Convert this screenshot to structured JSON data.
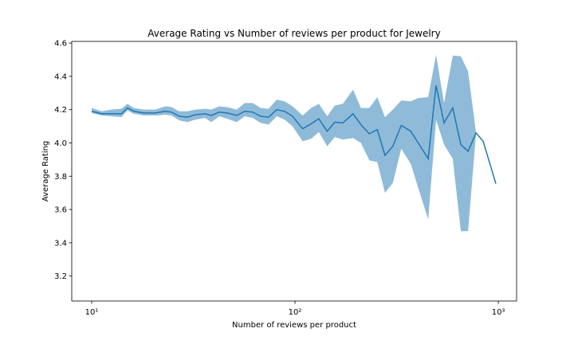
{
  "chart_data": {
    "type": "line",
    "title": "Average Rating vs Number of reviews per product for Jewelry",
    "xlabel": "Number of reviews per product",
    "ylabel": "Average Rating",
    "xscale": "log",
    "xlim": [
      7.98,
      1230
    ],
    "ylim": [
      3.05,
      4.61
    ],
    "xticks": [
      {
        "value": 10,
        "label": "10¹"
      },
      {
        "value": 100,
        "label": "10²"
      },
      {
        "value": 1000,
        "label": "10³"
      }
    ],
    "yticks": [
      3.2,
      3.4,
      3.6,
      3.8,
      {
        "value": 4,
        "label": "4.0"
      },
      4.2,
      4.4,
      4.6
    ],
    "x": [
      10,
      11.2,
      12.5,
      14.0,
      15.0,
      16.1,
      18.0,
      20.6,
      23.0,
      24.7,
      27.0,
      29.6,
      32.4,
      36.1,
      38.8,
      42.4,
      46.4,
      51.7,
      56.6,
      62.0,
      67.8,
      74.2,
      81.3,
      88.9,
      97.3,
      109,
      120,
      131,
      144,
      157,
      172,
      193,
      211,
      232,
      254,
      277,
      303,
      333,
      371,
      406,
      452,
      494,
      541,
      597,
      654,
      710,
      777,
      842,
      973
    ],
    "series": [
      {
        "color": "#1f77b4",
        "band_color": "#1f77b4",
        "band_opacity": 0.5,
        "values": [
          4.19,
          4.175,
          4.175,
          4.175,
          4.21,
          4.19,
          4.18,
          4.18,
          4.19,
          4.185,
          4.16,
          4.155,
          4.17,
          4.175,
          4.165,
          4.185,
          4.18,
          4.165,
          4.19,
          4.185,
          4.16,
          4.155,
          4.2,
          4.19,
          4.16,
          4.085,
          4.115,
          4.145,
          4.07,
          4.125,
          4.12,
          4.175,
          4.11,
          4.055,
          4.08,
          3.925,
          3.98,
          4.105,
          4.07,
          3.995,
          3.905,
          4.345,
          4.12,
          4.21,
          3.99,
          3.95,
          4.06,
          4.01,
          3.755
        ],
        "lower": [
          4.18,
          4.165,
          4.16,
          4.155,
          4.195,
          4.175,
          4.165,
          4.165,
          4.17,
          4.165,
          4.135,
          4.125,
          4.14,
          4.15,
          4.125,
          4.16,
          4.145,
          4.125,
          4.16,
          4.15,
          4.12,
          4.11,
          4.16,
          4.14,
          4.1,
          4.01,
          4.025,
          4.065,
          3.98,
          4.035,
          4.02,
          4.03,
          4.0,
          3.895,
          3.885,
          3.7,
          3.76,
          3.965,
          3.875,
          3.72,
          3.54,
          4.14,
          3.99,
          3.905,
          3.47,
          3.47,
          4.06,
          null,
          null
        ],
        "upper": [
          4.21,
          4.19,
          4.2,
          4.205,
          4.235,
          4.21,
          4.2,
          4.2,
          4.22,
          4.215,
          4.19,
          4.19,
          4.2,
          4.205,
          4.2,
          4.22,
          4.215,
          4.2,
          4.24,
          4.24,
          4.21,
          4.205,
          4.26,
          4.25,
          4.22,
          4.165,
          4.21,
          4.235,
          4.16,
          4.225,
          4.235,
          4.32,
          4.21,
          4.21,
          4.275,
          4.155,
          4.2,
          4.255,
          4.25,
          4.27,
          4.275,
          4.53,
          4.24,
          4.525,
          4.52,
          4.43,
          4.06,
          null,
          null
        ]
      }
    ]
  }
}
